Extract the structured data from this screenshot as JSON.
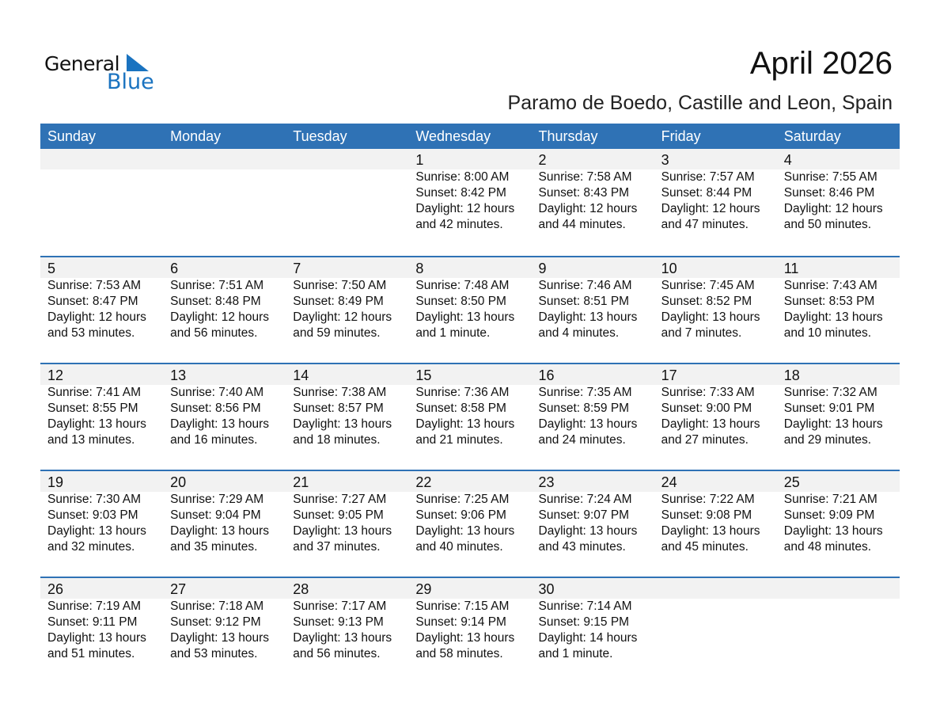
{
  "logo": {
    "line1": "General",
    "line2": "Blue",
    "color": "#1a73c0"
  },
  "title": "April 2026",
  "subtitle": "Paramo de Boedo, Castille and Leon, Spain",
  "colors": {
    "header": "#2f72b5",
    "band": "#f2f2f2"
  },
  "days": [
    "Sunday",
    "Monday",
    "Tuesday",
    "Wednesday",
    "Thursday",
    "Friday",
    "Saturday"
  ],
  "weeks": [
    [
      null,
      null,
      null,
      {
        "day": "1",
        "sunrise": "Sunrise: 8:00 AM",
        "sunset": "Sunset: 8:42 PM",
        "daylight1": "Daylight: 12 hours",
        "daylight2": "and 42 minutes."
      },
      {
        "day": "2",
        "sunrise": "Sunrise: 7:58 AM",
        "sunset": "Sunset: 8:43 PM",
        "daylight1": "Daylight: 12 hours",
        "daylight2": "and 44 minutes."
      },
      {
        "day": "3",
        "sunrise": "Sunrise: 7:57 AM",
        "sunset": "Sunset: 8:44 PM",
        "daylight1": "Daylight: 12 hours",
        "daylight2": "and 47 minutes."
      },
      {
        "day": "4",
        "sunrise": "Sunrise: 7:55 AM",
        "sunset": "Sunset: 8:46 PM",
        "daylight1": "Daylight: 12 hours",
        "daylight2": "and 50 minutes."
      }
    ],
    [
      {
        "day": "5",
        "sunrise": "Sunrise: 7:53 AM",
        "sunset": "Sunset: 8:47 PM",
        "daylight1": "Daylight: 12 hours",
        "daylight2": "and 53 minutes."
      },
      {
        "day": "6",
        "sunrise": "Sunrise: 7:51 AM",
        "sunset": "Sunset: 8:48 PM",
        "daylight1": "Daylight: 12 hours",
        "daylight2": "and 56 minutes."
      },
      {
        "day": "7",
        "sunrise": "Sunrise: 7:50 AM",
        "sunset": "Sunset: 8:49 PM",
        "daylight1": "Daylight: 12 hours",
        "daylight2": "and 59 minutes."
      },
      {
        "day": "8",
        "sunrise": "Sunrise: 7:48 AM",
        "sunset": "Sunset: 8:50 PM",
        "daylight1": "Daylight: 13 hours",
        "daylight2": "and 1 minute."
      },
      {
        "day": "9",
        "sunrise": "Sunrise: 7:46 AM",
        "sunset": "Sunset: 8:51 PM",
        "daylight1": "Daylight: 13 hours",
        "daylight2": "and 4 minutes."
      },
      {
        "day": "10",
        "sunrise": "Sunrise: 7:45 AM",
        "sunset": "Sunset: 8:52 PM",
        "daylight1": "Daylight: 13 hours",
        "daylight2": "and 7 minutes."
      },
      {
        "day": "11",
        "sunrise": "Sunrise: 7:43 AM",
        "sunset": "Sunset: 8:53 PM",
        "daylight1": "Daylight: 13 hours",
        "daylight2": "and 10 minutes."
      }
    ],
    [
      {
        "day": "12",
        "sunrise": "Sunrise: 7:41 AM",
        "sunset": "Sunset: 8:55 PM",
        "daylight1": "Daylight: 13 hours",
        "daylight2": "and 13 minutes."
      },
      {
        "day": "13",
        "sunrise": "Sunrise: 7:40 AM",
        "sunset": "Sunset: 8:56 PM",
        "daylight1": "Daylight: 13 hours",
        "daylight2": "and 16 minutes."
      },
      {
        "day": "14",
        "sunrise": "Sunrise: 7:38 AM",
        "sunset": "Sunset: 8:57 PM",
        "daylight1": "Daylight: 13 hours",
        "daylight2": "and 18 minutes."
      },
      {
        "day": "15",
        "sunrise": "Sunrise: 7:36 AM",
        "sunset": "Sunset: 8:58 PM",
        "daylight1": "Daylight: 13 hours",
        "daylight2": "and 21 minutes."
      },
      {
        "day": "16",
        "sunrise": "Sunrise: 7:35 AM",
        "sunset": "Sunset: 8:59 PM",
        "daylight1": "Daylight: 13 hours",
        "daylight2": "and 24 minutes."
      },
      {
        "day": "17",
        "sunrise": "Sunrise: 7:33 AM",
        "sunset": "Sunset: 9:00 PM",
        "daylight1": "Daylight: 13 hours",
        "daylight2": "and 27 minutes."
      },
      {
        "day": "18",
        "sunrise": "Sunrise: 7:32 AM",
        "sunset": "Sunset: 9:01 PM",
        "daylight1": "Daylight: 13 hours",
        "daylight2": "and 29 minutes."
      }
    ],
    [
      {
        "day": "19",
        "sunrise": "Sunrise: 7:30 AM",
        "sunset": "Sunset: 9:03 PM",
        "daylight1": "Daylight: 13 hours",
        "daylight2": "and 32 minutes."
      },
      {
        "day": "20",
        "sunrise": "Sunrise: 7:29 AM",
        "sunset": "Sunset: 9:04 PM",
        "daylight1": "Daylight: 13 hours",
        "daylight2": "and 35 minutes."
      },
      {
        "day": "21",
        "sunrise": "Sunrise: 7:27 AM",
        "sunset": "Sunset: 9:05 PM",
        "daylight1": "Daylight: 13 hours",
        "daylight2": "and 37 minutes."
      },
      {
        "day": "22",
        "sunrise": "Sunrise: 7:25 AM",
        "sunset": "Sunset: 9:06 PM",
        "daylight1": "Daylight: 13 hours",
        "daylight2": "and 40 minutes."
      },
      {
        "day": "23",
        "sunrise": "Sunrise: 7:24 AM",
        "sunset": "Sunset: 9:07 PM",
        "daylight1": "Daylight: 13 hours",
        "daylight2": "and 43 minutes."
      },
      {
        "day": "24",
        "sunrise": "Sunrise: 7:22 AM",
        "sunset": "Sunset: 9:08 PM",
        "daylight1": "Daylight: 13 hours",
        "daylight2": "and 45 minutes."
      },
      {
        "day": "25",
        "sunrise": "Sunrise: 7:21 AM",
        "sunset": "Sunset: 9:09 PM",
        "daylight1": "Daylight: 13 hours",
        "daylight2": "and 48 minutes."
      }
    ],
    [
      {
        "day": "26",
        "sunrise": "Sunrise: 7:19 AM",
        "sunset": "Sunset: 9:11 PM",
        "daylight1": "Daylight: 13 hours",
        "daylight2": "and 51 minutes."
      },
      {
        "day": "27",
        "sunrise": "Sunrise: 7:18 AM",
        "sunset": "Sunset: 9:12 PM",
        "daylight1": "Daylight: 13 hours",
        "daylight2": "and 53 minutes."
      },
      {
        "day": "28",
        "sunrise": "Sunrise: 7:17 AM",
        "sunset": "Sunset: 9:13 PM",
        "daylight1": "Daylight: 13 hours",
        "daylight2": "and 56 minutes."
      },
      {
        "day": "29",
        "sunrise": "Sunrise: 7:15 AM",
        "sunset": "Sunset: 9:14 PM",
        "daylight1": "Daylight: 13 hours",
        "daylight2": "and 58 minutes."
      },
      {
        "day": "30",
        "sunrise": "Sunrise: 7:14 AM",
        "sunset": "Sunset: 9:15 PM",
        "daylight1": "Daylight: 14 hours",
        "daylight2": "and 1 minute."
      },
      null,
      null
    ]
  ]
}
